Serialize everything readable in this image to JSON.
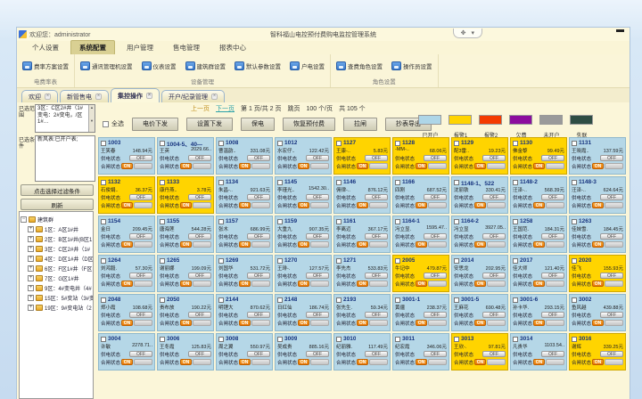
{
  "window": {
    "welcome": "欢迎您：administrator",
    "title": "智科福山电控预付费购电监控管理系统",
    "ctrl_icons": [
      "✥",
      "▾"
    ]
  },
  "menu": {
    "items": [
      "个人设置",
      "系统配置",
      "用户管理",
      "售电管理",
      "报表中心"
    ],
    "active_index": 1
  },
  "ribbon": {
    "groups": [
      {
        "label": "电费率表",
        "buttons": [
          "费率方案设置"
        ]
      },
      {
        "label": "设备管理",
        "buttons": [
          "通讯管理机设置",
          "仪表设置",
          "建筑群设置",
          "默认参数设置",
          "户电设置"
        ]
      },
      {
        "label": "角色设置",
        "buttons": [
          "查费角色设置",
          "操作员设置"
        ]
      }
    ]
  },
  "tabs": [
    {
      "label": "欢迎",
      "active": false
    },
    {
      "label": "新管售电",
      "active": false
    },
    {
      "label": "集控操作",
      "active": true
    },
    {
      "label": "开户/纪录管理",
      "active": false
    }
  ],
  "sidebar": {
    "range_label": "已选范围",
    "range_text": "3区：C区2#井（1#变电：2#变电，/区1#…",
    "condition_label": "已选条件",
    "condition_text": "新风表:已开户表;",
    "filter_button": "点击选择过滤条件",
    "refresh_button": "刷新",
    "tree": {
      "root": "建筑群",
      "items": [
        "1区：A区1#井",
        "2区：B区1#井(B区1",
        "3区：C区2#井（1#",
        "4区：D区1#井（D区",
        "6区：F区1#井（F区",
        "7区：G区1#井",
        "9区：4#变电井（4#",
        "15区：5#变站（3#变",
        "19区：9#变电站（2"
      ]
    }
  },
  "pagination": {
    "prev": "上一页",
    "next": "下一页",
    "info": "第 1 页/共 2 页",
    "jump": "跳页",
    "per_page": "100 个/页",
    "total": "共 105 个"
  },
  "toolbar": {
    "select_all": "全选",
    "buttons": [
      "电价下发",
      "设置下发",
      "保电",
      "恢复预付费",
      "拉闸",
      "抄表导出"
    ]
  },
  "legend": [
    {
      "label": "已开户",
      "color": "#aed6e8"
    },
    {
      "label": "报警1",
      "color": "#ffd400"
    },
    {
      "label": "报警2",
      "color": "#f43b00"
    },
    {
      "label": "欠费",
      "color": "#8c0d9e"
    },
    {
      "label": "未开户",
      "color": "#9a9a9a"
    },
    {
      "label": "失联",
      "color": "#2e4d44"
    }
  ],
  "card_labels": {
    "supply": "供电状态",
    "breaker": "合闸状态",
    "off": "OFF",
    "on": "ON"
  },
  "rooms": [
    {
      "id": "1003",
      "name": "王笑春",
      "balance": "148.94元",
      "status": "b"
    },
    {
      "id": "1004-5、40—",
      "name": "王英",
      "balance": "2029.66..",
      "status": "b"
    },
    {
      "id": "1008",
      "name": "曹温韵..",
      "balance": "331.08元",
      "status": "b"
    },
    {
      "id": "1012",
      "name": "水宏仔..",
      "balance": "122.42元",
      "status": "b"
    },
    {
      "id": "1127",
      "name": "王康-..",
      "balance": "5.83元",
      "status": "y"
    },
    {
      "id": "1128",
      "name": "-MM-..",
      "balance": "68.06元",
      "status": "y"
    },
    {
      "id": "1129",
      "name": "配3雷..",
      "balance": "19.23元",
      "status": "y"
    },
    {
      "id": "1130",
      "name": "佛金黎",
      "balance": "99.49元",
      "status": "y"
    },
    {
      "id": "1131",
      "name": "王晓霞..",
      "balance": "137.59元",
      "status": "b"
    },
    {
      "id": "1132",
      "name": "石俊娟..",
      "balance": "36.37元",
      "status": "y"
    },
    {
      "id": "1133",
      "name": "康丹燕..",
      "balance": "3.78元",
      "status": "y"
    },
    {
      "id": "1134",
      "name": "朱昌-..",
      "balance": "921.63元",
      "status": "b"
    },
    {
      "id": "1145",
      "name": "李瑾光..",
      "balance": "1542.30..",
      "status": "b"
    },
    {
      "id": "1146",
      "name": "佣律-..",
      "balance": "876.12元",
      "status": "b"
    },
    {
      "id": "1166",
      "name": "四刚",
      "balance": "687.52元",
      "status": "b"
    },
    {
      "id": "1148-1、522",
      "name": "沈丽铁",
      "balance": "330.41元",
      "status": "b"
    },
    {
      "id": "1148-2",
      "name": "汪泽-..",
      "balance": "568.39元",
      "status": "b"
    },
    {
      "id": "1148-3",
      "name": "汪泽-..",
      "balance": "624.64元",
      "status": "b"
    },
    {
      "id": "1154",
      "name": "金日",
      "balance": "209.45元",
      "status": "b"
    },
    {
      "id": "1155",
      "name": "唐海莲",
      "balance": "544.28元",
      "status": "b"
    },
    {
      "id": "1157",
      "name": "张木",
      "balance": "686.99元",
      "status": "b"
    },
    {
      "id": "1159",
      "name": "大重九",
      "balance": "907.35元",
      "status": "b"
    },
    {
      "id": "1161",
      "name": "李离迈",
      "balance": "367.17元",
      "status": "b"
    },
    {
      "id": "1164-1",
      "name": "冯立显.",
      "balance": "1595.47..",
      "status": "b"
    },
    {
      "id": "1164-2",
      "name": "冯立显",
      "balance": "3927.05..",
      "status": "b"
    },
    {
      "id": "1258",
      "name": "王国范.",
      "balance": "184.31元",
      "status": "b"
    },
    {
      "id": "1263",
      "name": "佳妹雪.",
      "balance": "184.45元",
      "status": "b"
    },
    {
      "id": "1264",
      "name": "刘鸿毅.",
      "balance": "57.30元",
      "status": "b"
    },
    {
      "id": "1265",
      "name": "谢丽娜",
      "balance": "199.09元",
      "status": "b"
    },
    {
      "id": "1269",
      "name": "刘国华",
      "balance": "531.72元",
      "status": "b"
    },
    {
      "id": "1270",
      "name": "王琲-.",
      "balance": "127.57元",
      "status": "b"
    },
    {
      "id": "1271",
      "name": "李先杰",
      "balance": "533.83元",
      "status": "b"
    },
    {
      "id": "2005",
      "name": "牛记中",
      "balance": "479.87元",
      "status": "y"
    },
    {
      "id": "2014",
      "name": "安思龙",
      "balance": "202.95元",
      "status": "b"
    },
    {
      "id": "2017",
      "name": "佳大师",
      "balance": "121.40元",
      "status": "b"
    },
    {
      "id": "2020",
      "name": "佳飞",
      "balance": "155.93元",
      "status": "y"
    },
    {
      "id": "2048",
      "name": "郑小霞",
      "balance": "108.68元",
      "status": "b"
    },
    {
      "id": "2050",
      "name": "贵布放",
      "balance": "190.22元",
      "status": "b"
    },
    {
      "id": "2144",
      "name": "明锂大",
      "balance": "870.62元",
      "status": "b"
    },
    {
      "id": "2148",
      "name": "日红仙",
      "balance": "186.74元",
      "status": "b"
    },
    {
      "id": "2193",
      "name": "张先生.",
      "balance": "59.34元",
      "status": "b"
    },
    {
      "id": "3001-1",
      "name": "黄疆",
      "balance": "238.37元",
      "status": "b"
    },
    {
      "id": "3001-5",
      "name": "王麻花",
      "balance": "690.48元",
      "status": "b"
    },
    {
      "id": "3001-6",
      "name": "孙卡华.",
      "balance": "293.15元",
      "status": "b"
    },
    {
      "id": "3002",
      "name": "鱼风越",
      "balance": "439.88元",
      "status": "b"
    },
    {
      "id": "3004",
      "name": "许敏",
      "balance": "2278.71..",
      "status": "b"
    },
    {
      "id": "3006",
      "name": "王冬霞",
      "balance": "125.83元",
      "status": "b"
    },
    {
      "id": "3008",
      "name": "周之翼",
      "balance": "550.97元",
      "status": "b"
    },
    {
      "id": "3009",
      "name": "吴成贵",
      "balance": "885.16元",
      "status": "b"
    },
    {
      "id": "3010",
      "name": "纪丽雅.",
      "balance": "117.49元",
      "status": "b"
    },
    {
      "id": "3011",
      "name": "纪宏霞",
      "balance": "346.06元",
      "status": "b"
    },
    {
      "id": "3013",
      "name": "王欣-.",
      "balance": "97.81元",
      "status": "y"
    },
    {
      "id": "3014",
      "name": "凡贵华",
      "balance": "1103.54..",
      "status": "b"
    },
    {
      "id": "3016",
      "name": "谢辉",
      "balance": "339.25元",
      "status": "y"
    }
  ]
}
